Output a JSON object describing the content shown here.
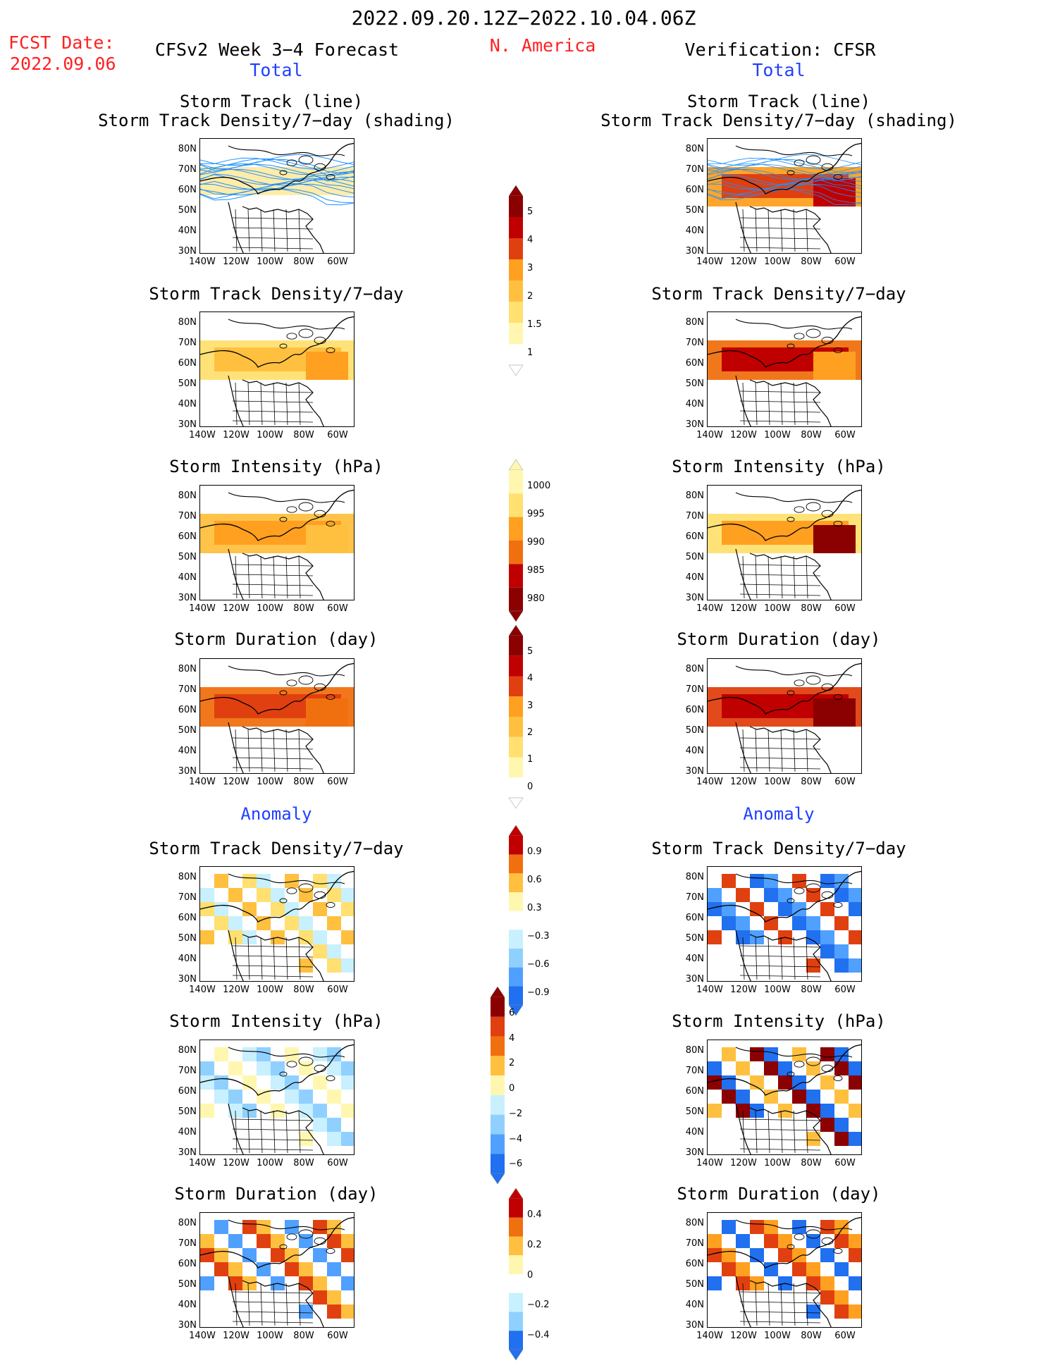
{
  "header": {
    "title": "2022.09.20.12Z−2022.10.04.06Z",
    "fcst_label": "FCST Date:",
    "fcst_date": "2022.09.06",
    "model": "CFSv2 Week 3−4 Forecast",
    "region": "N. America",
    "verification": "Verification: CFSR",
    "total_left": "Total",
    "total_right": "Total",
    "anomaly_left": "Anomaly",
    "anomaly_right": "Anomaly"
  },
  "panels": {
    "track_line": "Storm Track (line)",
    "track_shading": "Storm Track Density/7−day (shading)",
    "density": "Storm Track Density/7−day",
    "intensity": "Storm Intensity (hPa)",
    "duration": "Storm Duration (day)"
  },
  "axes": {
    "lat": [
      "80N",
      "70N",
      "60N",
      "50N",
      "40N",
      "30N"
    ],
    "lon": [
      "140W",
      "120W",
      "100W",
      "80W",
      "60W"
    ]
  },
  "colorbars": {
    "density_total": [
      "5",
      "4",
      "3",
      "2",
      "1.5",
      "1"
    ],
    "intensity_total": [
      "1000",
      "995",
      "990",
      "985",
      "980"
    ],
    "duration_total": [
      "5",
      "4",
      "3",
      "2",
      "1",
      "0"
    ],
    "density_anom": [
      "0.9",
      "0.6",
      "0.3",
      "−0.3",
      "−0.6",
      "−0.9"
    ],
    "intensity_anom": [
      "6",
      "4",
      "2",
      "0",
      "−2",
      "−4",
      "−6"
    ],
    "duration_anom": [
      "0.4",
      "0.2",
      "0",
      "−0.2",
      "−0.4"
    ]
  },
  "colors": {
    "red_text": "#ff2020",
    "blue_text": "#1f3fff",
    "track_line": "#1e90ff",
    "scale_warm": [
      "#fff7b0",
      "#ffe070",
      "#ffc040",
      "#ffa020",
      "#f07010",
      "#e04010",
      "#c00000",
      "#8b0000"
    ],
    "scale_cool": [
      "#c8f0ff",
      "#90d0ff",
      "#50a0ff",
      "#2070f0"
    ]
  }
}
